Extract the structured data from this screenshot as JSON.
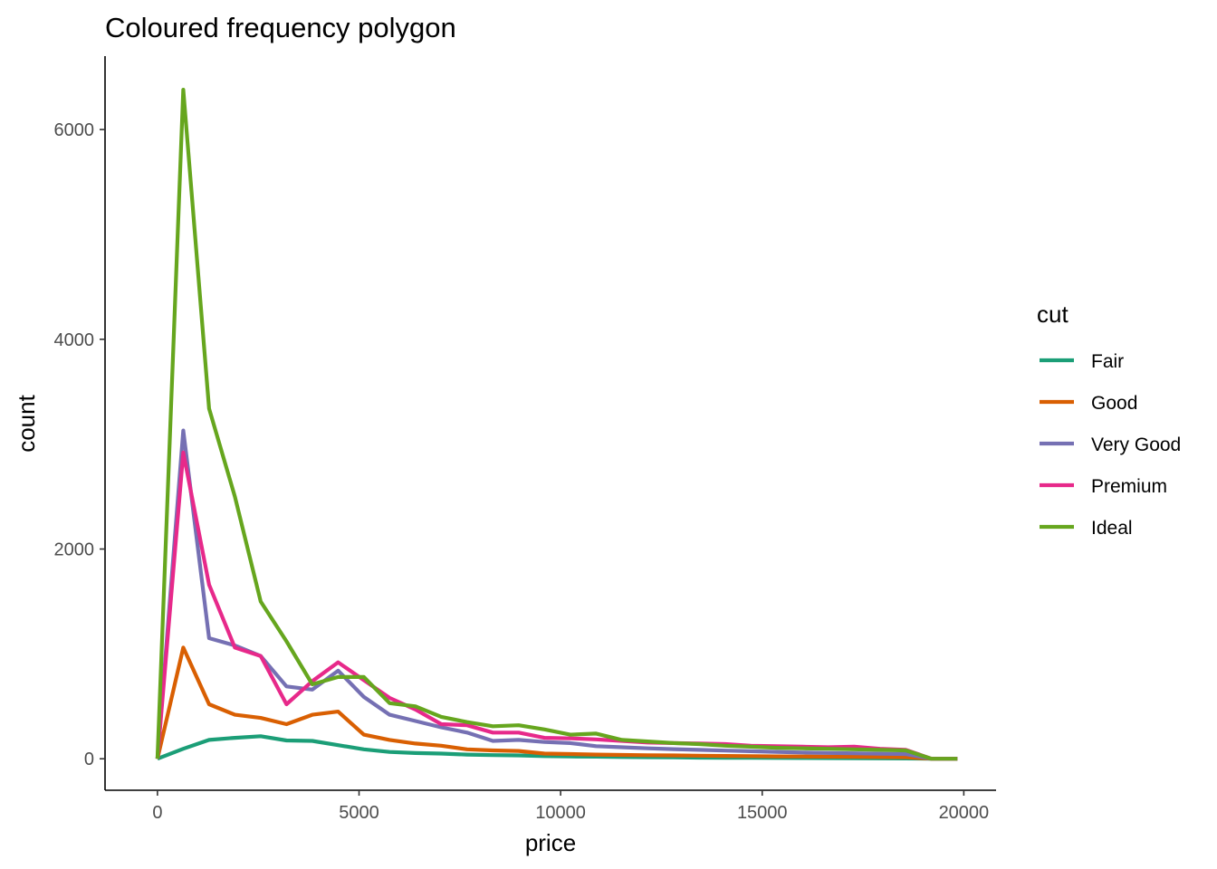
{
  "chart_data": {
    "type": "line",
    "title": "Coloured frequency polygon",
    "xlabel": "price",
    "ylabel": "count",
    "xlim": [
      -1300,
      20800
    ],
    "ylim": [
      -300,
      6700
    ],
    "xticks": [
      0,
      5000,
      10000,
      15000,
      20000
    ],
    "xtick_labels": [
      "0",
      "5000",
      "10000",
      "15000",
      "20000"
    ],
    "yticks": [
      0,
      2000,
      4000,
      6000
    ],
    "ytick_labels": [
      "0",
      "2000",
      "4000",
      "6000"
    ],
    "grid": false,
    "legend": {
      "title": "cut",
      "position": "right"
    },
    "x": [
      0,
      640,
      1280,
      1920,
      2560,
      3200,
      3840,
      4480,
      5120,
      5760,
      6400,
      7040,
      7680,
      8320,
      8960,
      9600,
      10240,
      10880,
      11520,
      12160,
      12800,
      13440,
      14080,
      14720,
      15360,
      16000,
      16640,
      17280,
      17920,
      18560,
      19200,
      19840
    ],
    "series": [
      {
        "name": "Fair",
        "color": "#1B9E77",
        "values": [
          0,
          95,
          180,
          200,
          215,
          175,
          170,
          130,
          90,
          65,
          55,
          50,
          40,
          35,
          32,
          25,
          22,
          20,
          17,
          15,
          13,
          11,
          10,
          9,
          8,
          7,
          6,
          5,
          4,
          3,
          0,
          0
        ]
      },
      {
        "name": "Good",
        "color": "#D95F02",
        "values": [
          0,
          1060,
          520,
          420,
          390,
          330,
          420,
          450,
          230,
          180,
          145,
          125,
          90,
          80,
          75,
          50,
          45,
          40,
          37,
          34,
          32,
          30,
          27,
          25,
          23,
          22,
          20,
          19,
          17,
          15,
          0,
          0
        ]
      },
      {
        "name": "Very Good",
        "color": "#7570B3",
        "values": [
          0,
          3130,
          1150,
          1080,
          980,
          690,
          660,
          840,
          590,
          420,
          360,
          300,
          250,
          170,
          180,
          160,
          150,
          120,
          110,
          100,
          92,
          85,
          78,
          72,
          66,
          60,
          56,
          52,
          48,
          45,
          0,
          0
        ]
      },
      {
        "name": "Premium",
        "color": "#E7298A",
        "values": [
          0,
          2920,
          1660,
          1060,
          980,
          520,
          740,
          920,
          750,
          580,
          470,
          330,
          320,
          250,
          250,
          200,
          195,
          185,
          170,
          155,
          150,
          145,
          140,
          125,
          120,
          115,
          110,
          115,
          95,
          85,
          0,
          0
        ]
      },
      {
        "name": "Ideal",
        "color": "#66A61E",
        "values": [
          0,
          6380,
          3340,
          2500,
          1500,
          1120,
          710,
          780,
          780,
          530,
          500,
          400,
          350,
          310,
          320,
          280,
          230,
          240,
          180,
          165,
          150,
          140,
          125,
          115,
          105,
          100,
          95,
          90,
          85,
          80,
          0,
          0
        ]
      }
    ]
  }
}
